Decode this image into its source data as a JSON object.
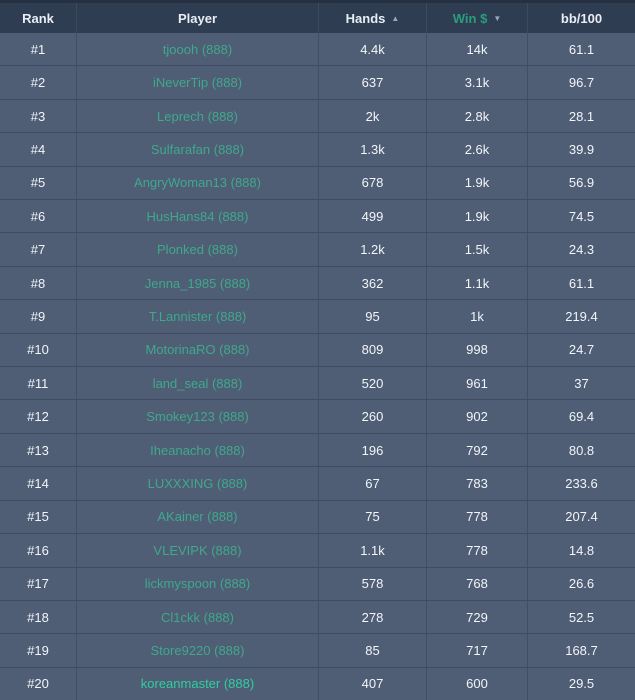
{
  "colors": {
    "header_bg": "#2e3d52",
    "header_top_border": "#253042",
    "row_bg": "#4f5d75",
    "header_text": "#e9eef5",
    "cell_text": "#f2f5f9",
    "active_sort_green": "#2a9d7c",
    "player_link": "#3fa98c",
    "player_link_bright": "#2fcea0"
  },
  "table": {
    "columns": [
      {
        "id": "rank",
        "label": "Rank",
        "sort": "none",
        "active": false
      },
      {
        "id": "player",
        "label": "Player",
        "sort": "none",
        "active": false
      },
      {
        "id": "hands",
        "label": "Hands",
        "sort": "asc",
        "active": false
      },
      {
        "id": "win",
        "label": "Win $",
        "sort": "desc",
        "active": true
      },
      {
        "id": "bb100",
        "label": "bb/100",
        "sort": "none",
        "active": false
      }
    ],
    "sort_icons": {
      "asc": "▲",
      "desc": "▼"
    },
    "rows": [
      {
        "rank": "#1",
        "player": "tjoooh (888)",
        "hands": "4.4k",
        "win": "14k",
        "bb100": "61.1",
        "highlight": false
      },
      {
        "rank": "#2",
        "player": "iNeverTip (888)",
        "hands": "637",
        "win": "3.1k",
        "bb100": "96.7",
        "highlight": false
      },
      {
        "rank": "#3",
        "player": "Leprech (888)",
        "hands": "2k",
        "win": "2.8k",
        "bb100": "28.1",
        "highlight": false
      },
      {
        "rank": "#4",
        "player": "Sulfarafan (888)",
        "hands": "1.3k",
        "win": "2.6k",
        "bb100": "39.9",
        "highlight": false
      },
      {
        "rank": "#5",
        "player": "AngryWoman13 (888)",
        "hands": "678",
        "win": "1.9k",
        "bb100": "56.9",
        "highlight": false
      },
      {
        "rank": "#6",
        "player": "HusHans84 (888)",
        "hands": "499",
        "win": "1.9k",
        "bb100": "74.5",
        "highlight": false
      },
      {
        "rank": "#7",
        "player": "Plonked (888)",
        "hands": "1.2k",
        "win": "1.5k",
        "bb100": "24.3",
        "highlight": false
      },
      {
        "rank": "#8",
        "player": "Jenna_1985 (888)",
        "hands": "362",
        "win": "1.1k",
        "bb100": "61.1",
        "highlight": false
      },
      {
        "rank": "#9",
        "player": "T.Lannister (888)",
        "hands": "95",
        "win": "1k",
        "bb100": "219.4",
        "highlight": false
      },
      {
        "rank": "#10",
        "player": "MotorinaRO (888)",
        "hands": "809",
        "win": "998",
        "bb100": "24.7",
        "highlight": false
      },
      {
        "rank": "#11",
        "player": "land_seal (888)",
        "hands": "520",
        "win": "961",
        "bb100": "37",
        "highlight": false
      },
      {
        "rank": "#12",
        "player": "Smokey123 (888)",
        "hands": "260",
        "win": "902",
        "bb100": "69.4",
        "highlight": false
      },
      {
        "rank": "#13",
        "player": "Iheanacho (888)",
        "hands": "196",
        "win": "792",
        "bb100": "80.8",
        "highlight": false
      },
      {
        "rank": "#14",
        "player": "LUXXXING (888)",
        "hands": "67",
        "win": "783",
        "bb100": "233.6",
        "highlight": false
      },
      {
        "rank": "#15",
        "player": "AKainer (888)",
        "hands": "75",
        "win": "778",
        "bb100": "207.4",
        "highlight": false
      },
      {
        "rank": "#16",
        "player": "VLEVIPK (888)",
        "hands": "1.1k",
        "win": "778",
        "bb100": "14.8",
        "highlight": false
      },
      {
        "rank": "#17",
        "player": "lickmyspoon (888)",
        "hands": "578",
        "win": "768",
        "bb100": "26.6",
        "highlight": false
      },
      {
        "rank": "#18",
        "player": "Cl1ckk (888)",
        "hands": "278",
        "win": "729",
        "bb100": "52.5",
        "highlight": false
      },
      {
        "rank": "#19",
        "player": "Store9220 (888)",
        "hands": "85",
        "win": "717",
        "bb100": "168.7",
        "highlight": false
      },
      {
        "rank": "#20",
        "player": "koreanmaster (888)",
        "hands": "407",
        "win": "600",
        "bb100": "29.5",
        "highlight": true
      }
    ]
  }
}
